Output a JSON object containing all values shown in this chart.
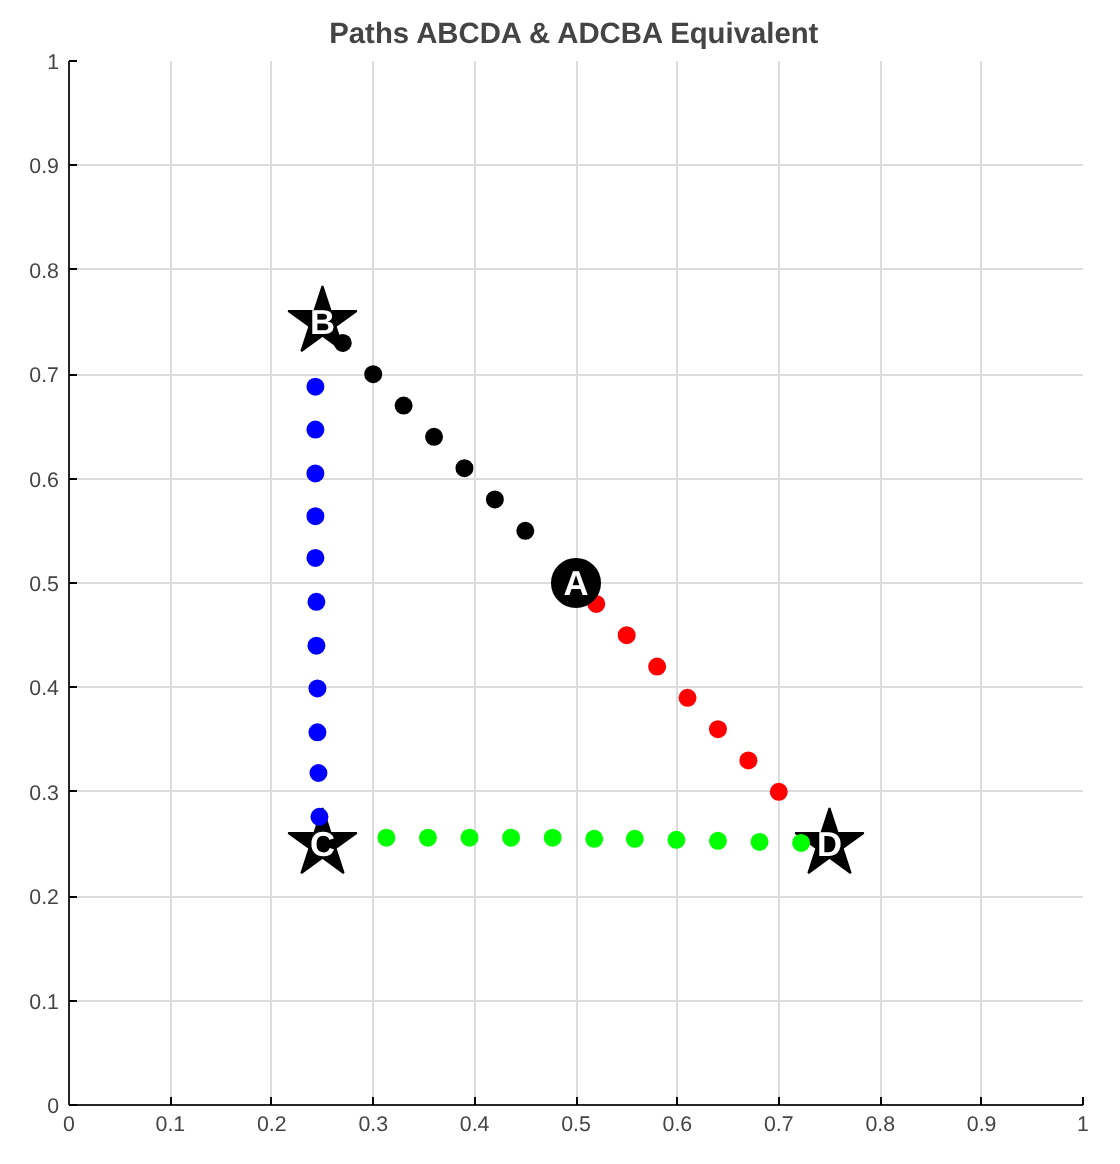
{
  "chart_data": {
    "type": "scatter",
    "title": "Paths ABCDA & ADCBA Equivalent",
    "xlim": [
      0,
      1
    ],
    "ylim": [
      0,
      1
    ],
    "xticks": [
      0,
      0.1,
      0.2,
      0.3,
      0.4,
      0.5,
      0.6,
      0.7,
      0.8,
      0.9,
      1
    ],
    "yticks": [
      0,
      0.1,
      0.2,
      0.3,
      0.4,
      0.5,
      0.6,
      0.7,
      0.8,
      0.9,
      1
    ],
    "grid": true,
    "marker": "circle",
    "series": [
      {
        "color": "#000000",
        "x": [
          0.27,
          0.3,
          0.33,
          0.36,
          0.39,
          0.42,
          0.45
        ],
        "values": [
          0.73,
          0.7,
          0.67,
          0.64,
          0.61,
          0.58,
          0.55
        ]
      },
      {
        "color": "#ff0000",
        "x": [
          0.52,
          0.55,
          0.58,
          0.61,
          0.64,
          0.67,
          0.7
        ],
        "values": [
          0.48,
          0.45,
          0.42,
          0.39,
          0.36,
          0.33,
          0.3
        ]
      },
      {
        "color": "#00ff00",
        "x": [
          0.313,
          0.354,
          0.395,
          0.436,
          0.477,
          0.518,
          0.558,
          0.599,
          0.64,
          0.681,
          0.722
        ],
        "values": [
          0.256,
          0.256,
          0.256,
          0.256,
          0.256,
          0.255,
          0.255,
          0.254,
          0.253,
          0.252,
          0.251
        ]
      },
      {
        "color": "#0000ff",
        "x": [
          0.243,
          0.243,
          0.243,
          0.243,
          0.243,
          0.244,
          0.244,
          0.245,
          0.245,
          0.246,
          0.247
        ],
        "values": [
          0.688,
          0.647,
          0.605,
          0.564,
          0.524,
          0.482,
          0.44,
          0.399,
          0.357,
          0.318,
          0.276
        ]
      },
      {
        "color": "#000000",
        "marker": "star",
        "x": [
          0.25,
          0.25,
          0.75
        ],
        "values": [
          0.75,
          0.25,
          0.25
        ]
      },
      {
        "color": "#000000",
        "marker": "circle",
        "x": [
          0.5
        ],
        "values": [
          0.5
        ]
      }
    ],
    "annotations": [
      {
        "text": "A",
        "x": 0.5,
        "y": 0.5
      },
      {
        "text": "B",
        "x": 0.25,
        "y": 0.75
      },
      {
        "text": "C",
        "x": 0.25,
        "y": 0.25
      },
      {
        "text": "D",
        "x": 0.75,
        "y": 0.25
      }
    ]
  }
}
